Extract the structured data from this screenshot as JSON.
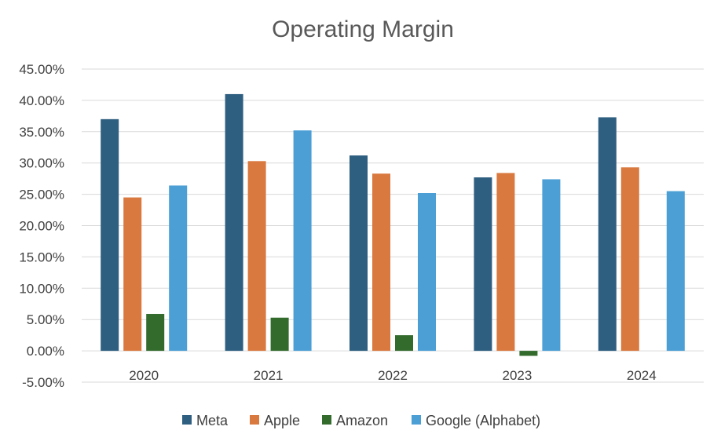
{
  "chart_data": {
    "type": "bar",
    "title": "Operating Margin",
    "xlabel": "",
    "ylabel": "",
    "categories": [
      "2020",
      "2021",
      "2022",
      "2023",
      "2024"
    ],
    "y_ticks": [
      "-5.00%",
      "0.00%",
      "5.00%",
      "10.00%",
      "15.00%",
      "20.00%",
      "25.00%",
      "30.00%",
      "35.00%",
      "40.00%",
      "45.00%"
    ],
    "ylim": [
      -5,
      45
    ],
    "grid": true,
    "legend_position": "bottom",
    "series": [
      {
        "name": "Meta",
        "color": "#2e5f80",
        "values": [
          37.0,
          41.0,
          31.2,
          27.7,
          37.3
        ]
      },
      {
        "name": "Apple",
        "color": "#d9793f",
        "values": [
          24.5,
          30.3,
          28.3,
          28.4,
          29.3
        ]
      },
      {
        "name": "Amazon",
        "color": "#336b2d",
        "values": [
          5.9,
          5.3,
          2.5,
          -0.8,
          null
        ]
      },
      {
        "name": "Google (Alphabet)",
        "color": "#4b9fd5",
        "values": [
          26.4,
          35.2,
          25.2,
          27.4,
          25.5
        ]
      }
    ]
  }
}
